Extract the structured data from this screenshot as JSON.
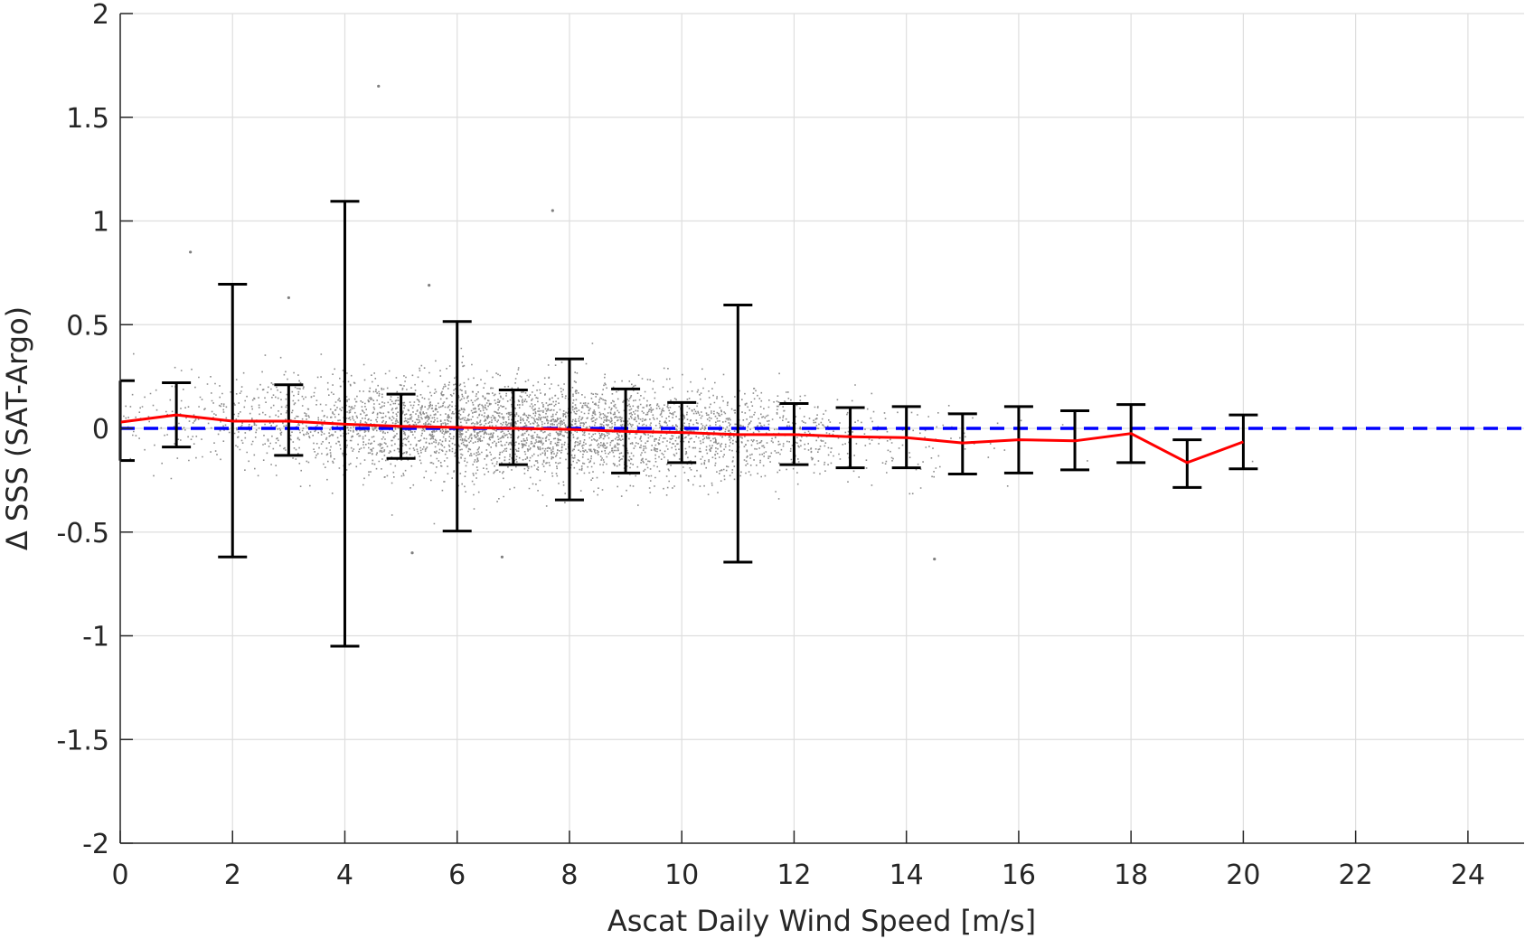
{
  "chart_data": {
    "type": "scatter",
    "title": "",
    "xlabel": "Ascat Daily Wind Speed [m/s]",
    "ylabel": "Δ SSS (SAT-Argo)",
    "xlim": [
      0,
      25
    ],
    "ylim": [
      -2,
      2
    ],
    "xticks": [
      0,
      2,
      4,
      6,
      8,
      10,
      12,
      14,
      16,
      18,
      20,
      22,
      24
    ],
    "yticks": [
      -2,
      -1.5,
      -1,
      -0.5,
      0,
      0.5,
      1,
      1.5,
      2
    ],
    "xtick_labels": [
      "0",
      "2",
      "4",
      "6",
      "8",
      "10",
      "12",
      "14",
      "16",
      "18",
      "20",
      "22",
      "24"
    ],
    "ytick_labels": [
      "-2",
      "-1.5",
      "-1",
      "-0.5",
      "0",
      "0.5",
      "1",
      "1.5",
      "2"
    ],
    "grid": true,
    "colors": {
      "scatter": "#7f7f7f",
      "mean_line": "#ff0000",
      "zero_line": "#0000ff",
      "error_bars": "#000000",
      "grid": "#dedede",
      "axis": "#262626"
    },
    "scatter_description": "dense cloud of individual collocation points, mostly between -0.5 and 0.5, concentrated at 4-11 m/s",
    "scatter_outliers": [
      {
        "x": 4.6,
        "y": 1.65
      },
      {
        "x": 7.7,
        "y": 1.05
      },
      {
        "x": 1.25,
        "y": 0.85
      },
      {
        "x": 5.5,
        "y": 0.69
      },
      {
        "x": 3.0,
        "y": 0.63
      },
      {
        "x": 14.5,
        "y": -0.63
      },
      {
        "x": 6.8,
        "y": -0.62
      },
      {
        "x": 5.2,
        "y": -0.6
      }
    ],
    "series": [
      {
        "type": "line",
        "x": [
          0,
          1,
          2,
          3,
          4,
          5,
          6,
          7,
          8,
          9,
          10,
          11,
          12,
          13,
          14,
          15,
          16,
          17,
          18,
          19,
          20
        ],
        "values": [
          0.03,
          0.065,
          0.035,
          0.035,
          0.02,
          0.01,
          0.005,
          0.0,
          -0.005,
          -0.015,
          -0.02,
          -0.03,
          -0.03,
          -0.04,
          -0.045,
          -0.07,
          -0.055,
          -0.06,
          -0.025,
          -0.165,
          -0.065
        ]
      },
      {
        "type": "errorbar",
        "x": [
          0,
          1,
          2,
          3,
          4,
          5,
          6,
          7,
          8,
          9,
          10,
          11,
          12,
          13,
          14,
          15,
          16,
          17,
          18,
          19,
          20
        ],
        "upper": [
          0.23,
          0.22,
          0.695,
          0.21,
          1.095,
          0.165,
          0.515,
          0.185,
          0.335,
          0.19,
          0.125,
          0.595,
          0.12,
          0.1,
          0.105,
          0.07,
          0.105,
          0.085,
          0.115,
          -0.055,
          0.065
        ],
        "lower": [
          -0.155,
          -0.09,
          -0.62,
          -0.13,
          -1.05,
          -0.145,
          -0.495,
          -0.175,
          -0.345,
          -0.215,
          -0.165,
          -0.645,
          -0.175,
          -0.19,
          -0.19,
          -0.22,
          -0.215,
          -0.2,
          -0.165,
          -0.285,
          -0.195
        ]
      },
      {
        "type": "reference-line",
        "y": 0,
        "style": "dashed"
      }
    ]
  }
}
